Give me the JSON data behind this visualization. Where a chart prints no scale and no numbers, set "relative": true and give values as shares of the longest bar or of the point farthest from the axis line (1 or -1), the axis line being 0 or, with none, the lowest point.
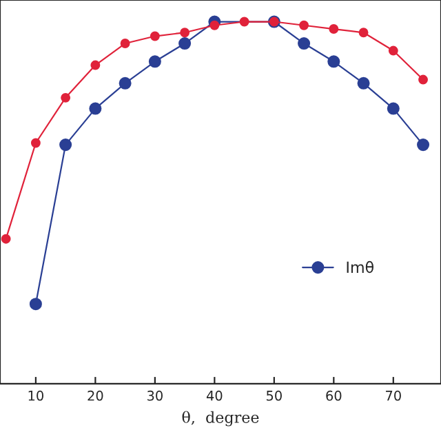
{
  "chart_data": {
    "type": "line",
    "xlabel": "θ,  degree",
    "relative": true,
    "xlim": [
      4,
      78
    ],
    "xticks": [
      10,
      20,
      30,
      40,
      50,
      60,
      70
    ],
    "marker": "circle",
    "legend": "right",
    "grid": false,
    "series": [
      {
        "color": "#e0223a",
        "x": [
          5,
          10,
          15,
          20,
          25,
          30,
          35,
          40,
          45,
          50,
          55,
          60,
          65,
          70,
          75
        ],
        "values": [
          0.4,
          0.665,
          0.79,
          0.88,
          0.94,
          0.96,
          0.97,
          0.99,
          1.0,
          1.0,
          0.99,
          0.98,
          0.97,
          0.92,
          0.84
        ]
      },
      {
        "name": "Imθ",
        "color": "#2a3f94",
        "x": [
          10,
          15,
          20,
          25,
          30,
          35,
          40,
          50,
          55,
          60,
          65,
          70,
          75
        ],
        "values": [
          0.22,
          0.66,
          0.76,
          0.83,
          0.89,
          0.94,
          1.0,
          1.0,
          0.94,
          0.89,
          0.83,
          0.76,
          0.66
        ]
      }
    ]
  }
}
